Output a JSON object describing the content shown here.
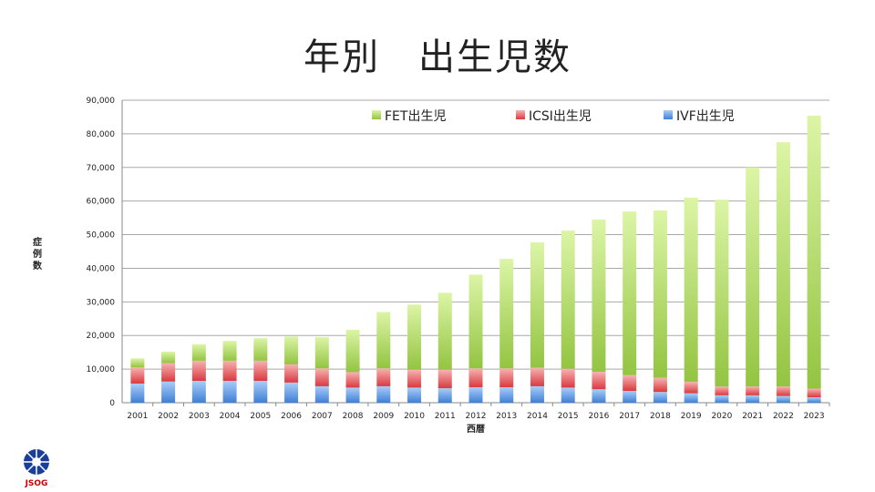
{
  "title": "年別　出生児数",
  "logo_text": "JSOG",
  "chart_data": {
    "type": "bar",
    "stacked": true,
    "title": "年別　出生児数",
    "xlabel": "西暦",
    "ylabel": "症例数",
    "ylim": [
      0,
      90000
    ],
    "yticks": [
      0,
      10000,
      20000,
      30000,
      40000,
      50000,
      60000,
      70000,
      80000,
      90000
    ],
    "ytick_labels": [
      "0",
      "10,000",
      "20,000",
      "30,000",
      "40,000",
      "50,000",
      "60,000",
      "70,000",
      "80,000",
      "90,000"
    ],
    "grid": true,
    "legend_position": "top",
    "categories": [
      "2001",
      "2002",
      "2003",
      "2004",
      "2005",
      "2006",
      "2007",
      "2008",
      "2009",
      "2010",
      "2011",
      "2012",
      "2013",
      "2014",
      "2015",
      "2016",
      "2017",
      "2018",
      "2019",
      "2020",
      "2021",
      "2022",
      "2023"
    ],
    "series": [
      {
        "name": "IVF出生児",
        "color": "#4f8fe0",
        "values": [
          5700,
          6300,
          6500,
          6500,
          6500,
          6000,
          4900,
          4500,
          4900,
          4500,
          4300,
          4600,
          4600,
          4900,
          4500,
          4000,
          3500,
          3200,
          2800,
          2200,
          2200,
          2000,
          1600
        ]
      },
      {
        "name": "ICSI出生児",
        "color": "#e0474c",
        "values": [
          4800,
          5500,
          6000,
          6000,
          6000,
          5400,
          5300,
          4600,
          5300,
          5300,
          5500,
          5600,
          5600,
          5500,
          5600,
          5200,
          4700,
          4200,
          3400,
          2600,
          2600,
          2800,
          2600
        ]
      },
      {
        "name": "FET出生児",
        "color": "#9bcc48",
        "values": [
          2700,
          3400,
          4900,
          5900,
          6700,
          8300,
          9300,
          12600,
          16800,
          19400,
          22900,
          27900,
          32600,
          37300,
          41100,
          45300,
          48700,
          49800,
          54800,
          55600,
          65200,
          72700,
          81200
        ]
      }
    ]
  }
}
